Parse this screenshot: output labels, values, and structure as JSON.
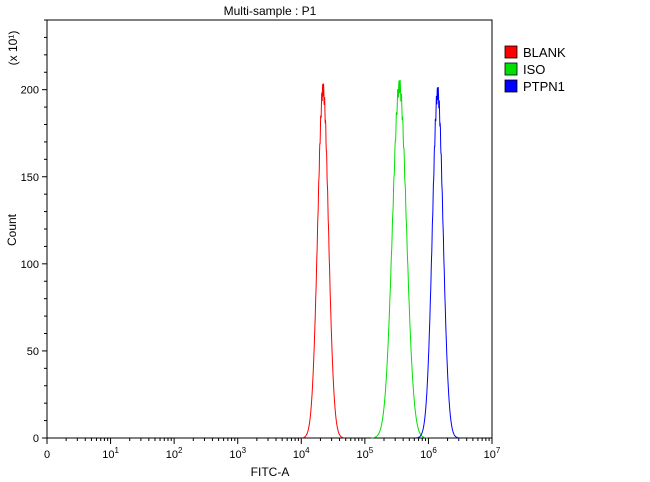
{
  "chart_data": {
    "type": "line",
    "title": "Multi-sample : P1",
    "xlabel": "FITC-A",
    "ylabel": "Count",
    "y_multiplier": "(x 10¹)",
    "x_scale": "log",
    "xlim": [
      1,
      10000000
    ],
    "ylim": [
      0,
      240
    ],
    "x_ticks": [
      {
        "value": 1,
        "base": "0",
        "exp": ""
      },
      {
        "value": 10,
        "base": "10",
        "exp": "1"
      },
      {
        "value": 100,
        "base": "10",
        "exp": "2"
      },
      {
        "value": 1000,
        "base": "10",
        "exp": "3"
      },
      {
        "value": 10000,
        "base": "10",
        "exp": "4"
      },
      {
        "value": 100000,
        "base": "10",
        "exp": "5"
      },
      {
        "value": 1000000,
        "base": "10",
        "exp": "6"
      },
      {
        "value": 10000000,
        "base": "10",
        "exp": "7"
      }
    ],
    "y_ticks": [
      0,
      50,
      100,
      150,
      200
    ],
    "grid": false,
    "legend_position": "top-right",
    "series": [
      {
        "name": "BLANK",
        "color": "#ff0000",
        "peak_x": 22000,
        "peak_y": 200,
        "log_width": 0.085,
        "x": [
          10000,
          12000,
          14000,
          16000,
          18000,
          20000,
          22000,
          24000,
          27000,
          30000,
          34000,
          40000,
          50000
        ],
        "y": [
          0,
          4,
          25,
          80,
          150,
          190,
          200,
          185,
          130,
          70,
          25,
          4,
          0
        ]
      },
      {
        "name": "ISO",
        "color": "#00e000",
        "peak_x": 350000,
        "peak_y": 202,
        "log_width": 0.11,
        "x": [
          100000,
          140000,
          180000,
          220000,
          260000,
          300000,
          350000,
          400000,
          450000,
          520000,
          600000,
          700000,
          850000
        ],
        "y": [
          0,
          4,
          20,
          60,
          115,
          170,
          202,
          185,
          140,
          80,
          35,
          8,
          0
        ]
      },
      {
        "name": "PTPN1",
        "color": "#0000ff",
        "peak_x": 1400000,
        "peak_y": 198,
        "log_width": 0.085,
        "x": [
          600000,
          750000,
          900000,
          1050000,
          1200000,
          1300000,
          1400000,
          1550000,
          1700000,
          1900000,
          2200000,
          2600000,
          3300000
        ],
        "y": [
          0,
          4,
          20,
          65,
          140,
          185,
          198,
          185,
          140,
          80,
          30,
          5,
          0
        ]
      }
    ]
  }
}
